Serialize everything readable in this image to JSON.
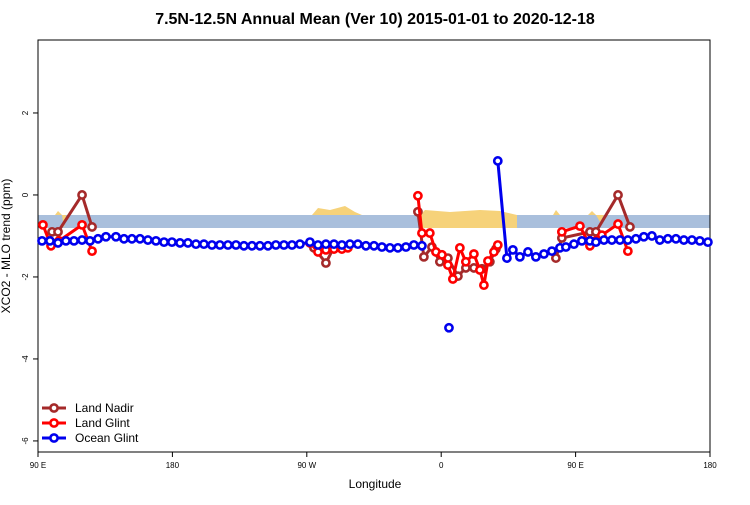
{
  "chart_data": {
    "type": "line",
    "title": "7.5N-12.5N Annual Mean (Ver 10)   2015-01-01 to 2020-12-18",
    "x_label": "Longitude",
    "y_label": "XCO2 - MLO trend (ppm)",
    "xlim": [
      90,
      540
    ],
    "ylim": [
      -6.27,
      3.78
    ],
    "xticks": [
      {
        "value": 90,
        "label": "90 E"
      },
      180,
      {
        "value": 270,
        "label": "90 W"
      },
      {
        "value": 360,
        "label": "0"
      },
      {
        "value": 450,
        "label": "90 E"
      },
      {
        "value": 540,
        "label": "180"
      }
    ],
    "yticks": [
      -6,
      -4,
      -2,
      0,
      2
    ],
    "legend": "bottom-left",
    "series": [
      {
        "name": "Land Nadir",
        "color": "#a52a2a",
        "x": [
          99.4,
          103.4,
          119.5,
          126.2,
          null,
          274.8,
          282.8,
          288.2,
          null,
          344.4,
          348.4,
          353.8,
          359.1,
          364.5,
          371.2,
          376.5,
          381.9,
          387.3,
          392.6,
          396.6,
          null,
          436.8,
          440.8,
          459.6,
          463.6,
          478.4,
          486.4
        ],
        "values": [
          -0.9,
          -0.9,
          0,
          -0.78,
          null,
          -1.29,
          -1.66,
          -1.27,
          null,
          -0.41,
          -1.51,
          -1.27,
          -1.63,
          -1.54,
          -1.98,
          -1.78,
          -1.78,
          -1.8,
          -1.63,
          -1.32,
          null,
          -1.54,
          -1.05,
          -0.9,
          -0.9,
          0,
          -0.78
        ]
      },
      {
        "name": "Land Glint",
        "color": "#ff0000",
        "x": [
          93.3,
          98.7,
          104.1,
          119.5,
          126.2,
          null,
          272.1,
          277.5,
          282.8,
          288.2,
          293.5,
          297.5,
          null,
          344.4,
          347.1,
          352.4,
          356.5,
          360.5,
          364.5,
          367.8,
          372.5,
          376.5,
          381.9,
          385.9,
          388.6,
          391.3,
          395.3,
          397.9,
          null,
          440.8,
          452.9,
          459.6,
          463.6,
          467.6,
          478.4,
          485.0
        ],
        "values": [
          -0.73,
          -1.24,
          -1.12,
          -0.73,
          -1.37,
          null,
          -1.17,
          -1.39,
          -1.34,
          -1.32,
          -1.32,
          -1.29,
          null,
          -0.02,
          -0.93,
          -0.93,
          -1.39,
          -1.46,
          -1.71,
          -2.05,
          -1.29,
          -1.63,
          -1.44,
          -1.83,
          -2.2,
          -1.61,
          -1.39,
          -1.22,
          null,
          -0.9,
          -0.76,
          -1.24,
          -1.12,
          -0.98,
          -0.71,
          -1.37
        ]
      },
      {
        "name": "Ocean Glint",
        "color": "#0000ee",
        "x": [
          92.7,
          98.0,
          103.4,
          108.7,
          114.1,
          119.5,
          124.8,
          130.2,
          135.5,
          142.2,
          147.6,
          152.9,
          158.3,
          163.6,
          169.0,
          174.4,
          179.7,
          185.1,
          190.4,
          195.8,
          201.1,
          206.5,
          211.8,
          217.2,
          222.6,
          227.9,
          233.3,
          238.6,
          244.0,
          249.3,
          254.7,
          260.1,
          265.4,
          272.1,
          277.5,
          282.8,
          288.2,
          293.5,
          298.9,
          304.2,
          309.6,
          315.0,
          320.3,
          325.7,
          331.0,
          336.4,
          341.7,
          347.1,
          null,
          365.2,
          null,
          397.9,
          404.0,
          408.0,
          412.7,
          418.1,
          423.4,
          428.8,
          434.1,
          439.5,
          443.5,
          448.9,
          454.2,
          459.6,
          463.6,
          469.0,
          474.3,
          479.7,
          485.0,
          490.4,
          495.7,
          501.1,
          506.4,
          511.8,
          517.2,
          522.5,
          527.9,
          533.2,
          538.6
        ],
        "values": [
          -1.12,
          -1.12,
          -1.17,
          -1.12,
          -1.12,
          -1.1,
          -1.12,
          -1.07,
          -1.02,
          -1.02,
          -1.07,
          -1.07,
          -1.07,
          -1.1,
          -1.12,
          -1.15,
          -1.15,
          -1.17,
          -1.17,
          -1.2,
          -1.2,
          -1.22,
          -1.22,
          -1.22,
          -1.22,
          -1.24,
          -1.24,
          -1.24,
          -1.24,
          -1.22,
          -1.22,
          -1.22,
          -1.2,
          -1.15,
          -1.22,
          -1.2,
          -1.2,
          -1.22,
          -1.2,
          -1.2,
          -1.24,
          -1.24,
          -1.27,
          -1.29,
          -1.29,
          -1.27,
          -1.22,
          -1.24,
          null,
          -3.24,
          null,
          0.83,
          -1.54,
          -1.34,
          -1.51,
          -1.39,
          -1.51,
          -1.44,
          -1.37,
          -1.29,
          -1.27,
          -1.2,
          -1.12,
          -1.12,
          -1.15,
          -1.1,
          -1.1,
          -1.1,
          -1.1,
          -1.07,
          -1.02,
          -1.0,
          -1.1,
          -1.07,
          -1.07,
          -1.1,
          -1.1,
          -1.12,
          -1.15
        ]
      }
    ]
  }
}
